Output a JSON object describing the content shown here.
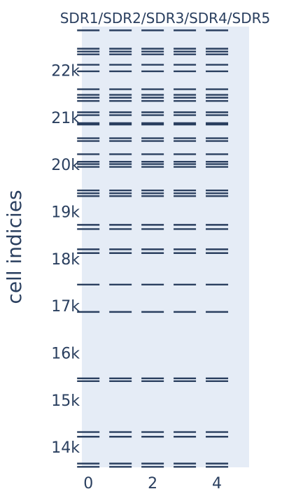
{
  "chart_data": {
    "type": "scatter",
    "title": "SDR1/SDR2/SDR3/SDR4/SDR5",
    "xlabel": "",
    "ylabel": "cell indicies",
    "xlim": [
      -0.2,
      5
    ],
    "ylim": [
      13570,
      22930
    ],
    "x_ticks": [
      0,
      2,
      4
    ],
    "x_tick_labels": [
      "0",
      "2",
      "4"
    ],
    "y_ticks": [
      14000,
      15000,
      16000,
      17000,
      18000,
      19000,
      20000,
      21000,
      22000
    ],
    "y_tick_labels": [
      "14k",
      "15k",
      "16k",
      "17k",
      "18k",
      "19k",
      "20k",
      "21k",
      "22k"
    ],
    "grid": false,
    "legend": "none",
    "marker": "line-ew",
    "columns": [
      0,
      1,
      2,
      3,
      4
    ],
    "y": [
      13650,
      13580,
      14320,
      14220,
      15460,
      15400,
      16870,
      17450,
      18200,
      18120,
      18720,
      18630,
      19450,
      19390,
      19330,
      19950,
      20010,
      20060,
      20220,
      20500,
      20560,
      20850,
      20880,
      21050,
      21110,
      21350,
      21420,
      21480,
      21600,
      21980,
      22120,
      22340,
      22400,
      22460,
      22850
    ],
    "plot_bg_color": "#e5ecf6",
    "mark_color": "#2a3f5f"
  }
}
